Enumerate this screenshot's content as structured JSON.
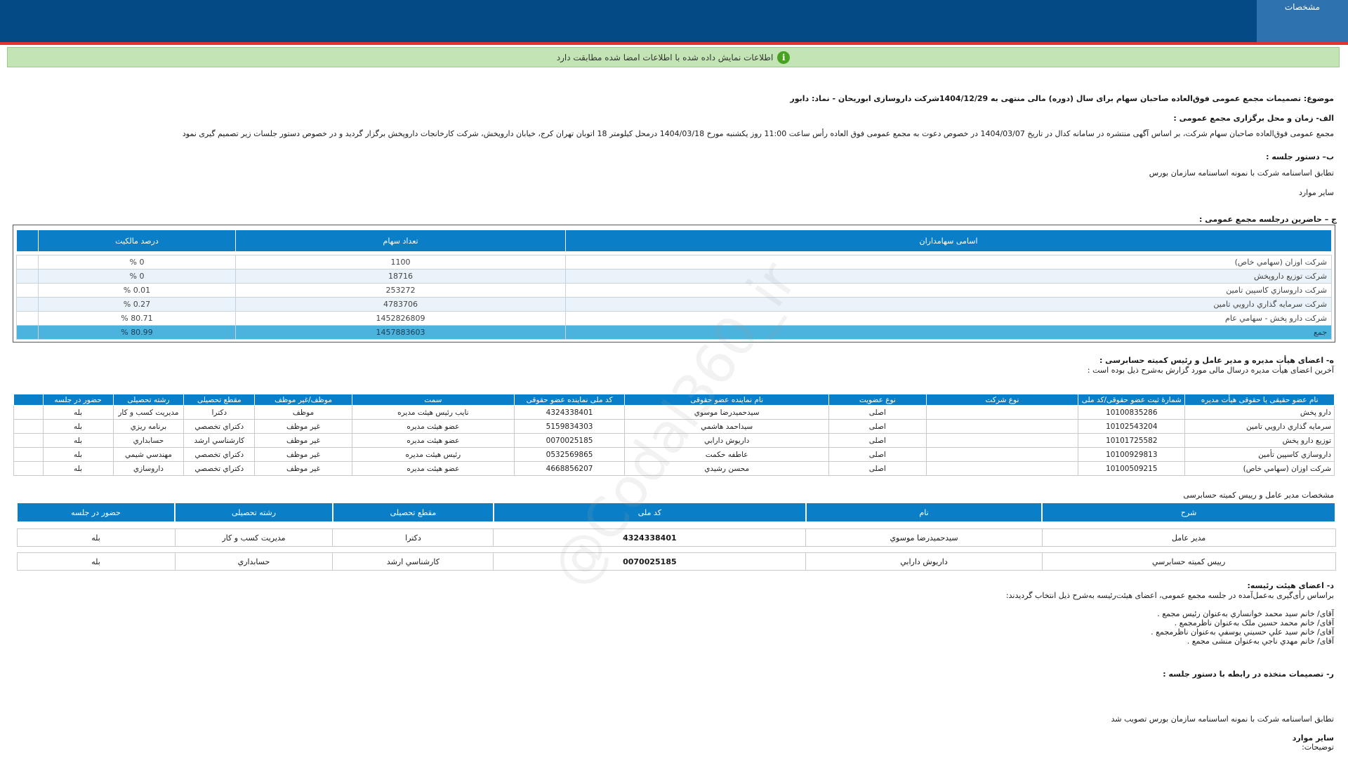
{
  "header": {
    "tab_label": "مشخصات"
  },
  "notice": {
    "icon": "info-check-icon",
    "text": "اطلاعات نمایش داده شده با اطلاعات امضا شده مطابقت دارد"
  },
  "subject": "موضوع: تصمیمات مجمع عمومی فوق‌العاده صاحبان سهام برای سال (دوره) مالی منتهی به 1404/12/29شرکت داروسازی ابوریحان - نماد: دابور",
  "section_a": {
    "title": "الف- زمان و محل برگزاری مجمع عمومی :",
    "text": "مجمع عمومی فوق‌العاده صاحبان سهام شرکت، بر اساس آگهی منتشره در سامانه کدال در تاریخ 1404/03/07 در خصوص دعوت به مجمع عمومی فوق العاده رأس ساعت 11:00 روز یکشنبه مورخ 1404/03/18 درمحل کیلومتر 18 اتوبان تهران کرج، خیابان دارویخش، شرکت کارخانجات داروپخش   برگزار گردید و در خصوص دستور جلسات زیر تصمیم گیری نمود"
  },
  "section_b": {
    "title": "ب– دستور جلسه :",
    "items": [
      "تطابق اساسنامه شرکت با نمونه اساسنامه سازمان بورس",
      "سایر موارد"
    ]
  },
  "section_c": {
    "title": "ج – حاضرین درجلسه مجمع عمومی :",
    "headers": [
      "اسامی سهامداران",
      "تعداد سهام",
      "درصد مالکیت"
    ],
    "rows": [
      [
        "شرکت اوزان (سهامي خاص)",
        "1100",
        "0 %"
      ],
      [
        "شرکت توزیع داروپخش",
        "18716",
        "0 %"
      ],
      [
        "شرکت داروسازي کاسپين تامين",
        "253272",
        "0.01 %"
      ],
      [
        "شرکت سرمايه گذاري دارويي تامين",
        "4783706",
        "0.27 %"
      ],
      [
        "شرکت دارو پخش - سهامي عام",
        "1452826809",
        "80.71 %"
      ],
      [
        "جمع",
        "1457883603",
        "80.99 %"
      ]
    ]
  },
  "section_h": {
    "title": "ه- اعضای هیأت مدیره و مدیر عامل و رئیس کمیته حسابرسی :",
    "subtitle": "آخرین اعضای هیأت مدیره درسال مالی مورد گزارش به‌شرح ذیل بوده است :",
    "headers": [
      "نام عضو حقیقی یا حقوقی هیأت مدیره",
      "شمارۀ ثبت عضو حقوقی/کد ملی",
      "نوع شرکت",
      "نوع عضویت",
      "نام نماینده عضو حقوقی",
      "کد ملی نماینده عضو حقوقی",
      "سمت",
      "موظف/غیر موظف",
      "مقطع تحصیلی",
      "رشته تحصیلی",
      "حضور در جلسه"
    ],
    "rows": [
      [
        "دارو پخش",
        "10100835286",
        "",
        "اصلی",
        "سیدحمیدرضا موسوي",
        "4324338401",
        "نایب رئيس هيئت مديره",
        "موظف",
        "دکترا",
        "مديريت کسب و کار",
        "بله"
      ],
      [
        "سرمايه گذاري دارويي تامين",
        "10102543204",
        "",
        "اصلی",
        "سیداحمد هاشمي",
        "5159834303",
        "عضو هيئت مديره",
        "غير موظف",
        "دکتراي تخصصي",
        "برنامه ريزي",
        "بله"
      ],
      [
        "توزیع دارو پخش",
        "10101725582",
        "",
        "اصلی",
        "داريوش دارابي",
        "0070025185",
        "عضو هيئت مديره",
        "غير موظف",
        "کارشناسي ارشد",
        "حسابداري",
        "بله"
      ],
      [
        "داروسازي کاسپين تأمين",
        "10100929813",
        "",
        "اصلی",
        "عاطفه حکمت",
        "0532569865",
        "رئيس هيئت مديره",
        "غير موظف",
        "دکتراي تخصصي",
        "مهندسي شيمي",
        "بله"
      ],
      [
        "شرکت اوزان (سهامي خاص)",
        "10100509215",
        "",
        "اصلی",
        "محسن رشيدي",
        "4668856207",
        "عضو هيئت مديره",
        "غير موظف",
        "دکتراي تخصصي",
        "داروسازي",
        "بله"
      ]
    ]
  },
  "ceo_table": {
    "title": "مشخصات مدیر عامل و رییس کمیته حسابرسی",
    "headers": [
      "شرح",
      "نام",
      "کد ملی",
      "مقطع تحصیلی",
      "رشته تحصیلی",
      "حضور در جلسه"
    ],
    "rows": [
      [
        "مدیر عامل",
        "سیدحمیدرضا موسوي",
        "4324338401",
        "دکترا",
        "مديريت کسب و کار",
        "بله"
      ],
      [
        "رييس کميته حسابرسي",
        "داريوش دارابي",
        "0070025185",
        "کارشناسي ارشد",
        "حسابداري",
        "بله"
      ]
    ]
  },
  "section_d": {
    "title": "د- اعضای هیئت رئیسه:",
    "intro": "براساس رأی‌گیری به‌عمل‌آمده در جلسه مجمع عمومی، اعضای هیئت‌رئیسه به‌شرح ذیل انتخاب گردیدند:",
    "members": [
      "آقای/ خانم  سيد محمد خوانساري  به‌عنوان رئیس مجمع .",
      "آقای/ خانم  محمد حسين ملک  به‌عنوان ناظرمجمع .",
      "آقای/ خانم  سيد علي حسيني يوسفي  به‌عنوان ناظرمجمع .",
      "آقای/ خانم  مهدي ناجي  به‌عنوان منشی مجمع ."
    ]
  },
  "section_r": {
    "title": "ر- تصمیمات متخذه در رابطه با دستور جلسه :",
    "decision": "تطابق اساسنامه شرکت با نمونه اساسنامه سازمان بورس تصویب شد",
    "other_title": "سایر موارد",
    "notes_label": "توضیحات:"
  },
  "watermark": "@Codal360_ir"
}
